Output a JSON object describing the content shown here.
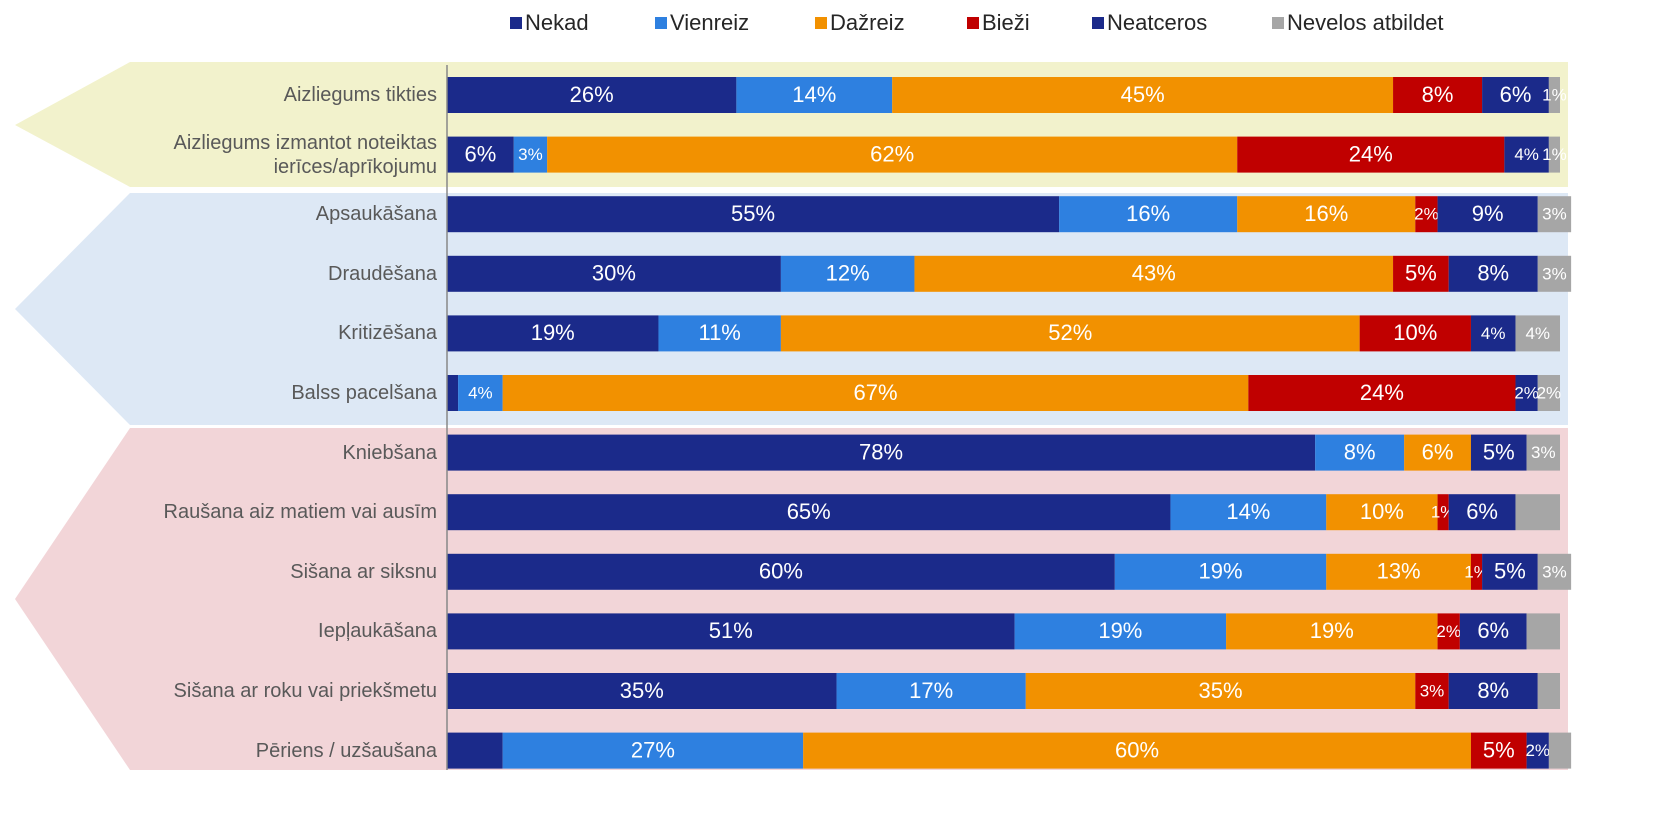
{
  "chart_data": {
    "type": "stacked-barh",
    "categories": [
      "Aizliegums tikties",
      "Aizliegums izmantot noteiktas ierīces/aprīkojumu",
      "Apsaukāšana",
      "Draudēšana",
      "Kritizēšana",
      "Balss pacelšana",
      "Kniebšana",
      "Raušana aiz matiem vai ausīm",
      "Sišana ar siksnu",
      "Iepļaukāšana",
      "Sišana ar roku vai priekšmetu",
      "Pēriens / uzšaušana"
    ],
    "xlim": [
      0,
      100
    ],
    "series": [
      {
        "name": "Nekad",
        "color": "#1b2a8a",
        "values": [
          26,
          6,
          55,
          30,
          19,
          1,
          78,
          65,
          60,
          51,
          35,
          5
        ],
        "value_labels": [
          "26%",
          "6%",
          "55%",
          "30%",
          "19%",
          null,
          "78%",
          "65%",
          "60%",
          "51%",
          "35%",
          null
        ]
      },
      {
        "name": "Vienreiz",
        "color": "#2e80e0",
        "values": [
          14,
          3,
          16,
          12,
          11,
          4,
          8,
          14,
          19,
          19,
          17,
          27
        ],
        "value_labels": [
          "14%",
          "3%",
          "16%",
          "12%",
          "11%",
          "4%",
          "8%",
          "14%",
          "19%",
          "19%",
          "17%",
          "27%"
        ]
      },
      {
        "name": "Dažreiz",
        "color": "#f29100",
        "values": [
          45,
          62,
          16,
          43,
          52,
          67,
          6,
          10,
          13,
          19,
          35,
          60
        ],
        "value_labels": [
          "45%",
          "62%",
          "16%",
          "43%",
          "52%",
          "67%",
          "6%",
          "10%",
          "13%",
          "19%",
          "35%",
          "60%"
        ]
      },
      {
        "name": "Bieži",
        "color": "#c00000",
        "values": [
          8,
          24,
          2,
          5,
          10,
          24,
          0,
          1,
          1,
          2,
          3,
          5
        ],
        "value_labels": [
          "8%",
          "24%",
          "2%",
          "5%",
          "10%",
          "24%",
          null,
          "1%",
          "1%",
          "2%",
          "3%",
          "5%"
        ]
      },
      {
        "name": "Neatceros",
        "color": "#1b2a8a",
        "values": [
          6,
          4,
          9,
          8,
          4,
          2,
          5,
          6,
          5,
          6,
          8,
          2
        ],
        "value_labels": [
          "6%",
          "4%",
          "9%",
          "8%",
          "4%",
          "2%",
          "5%",
          "6%",
          "5%",
          "6%",
          "8%",
          "2%"
        ]
      },
      {
        "name": "Nevelos atbildet",
        "color": "#a6a6a6",
        "values": [
          1,
          1,
          3,
          3,
          4,
          2,
          3,
          4,
          3,
          3,
          2,
          2
        ],
        "value_labels": [
          "1%",
          "1%",
          "3%",
          "3%",
          "4%",
          "2%",
          "3%",
          null,
          "3%",
          null,
          null,
          null
        ]
      }
    ]
  }
}
